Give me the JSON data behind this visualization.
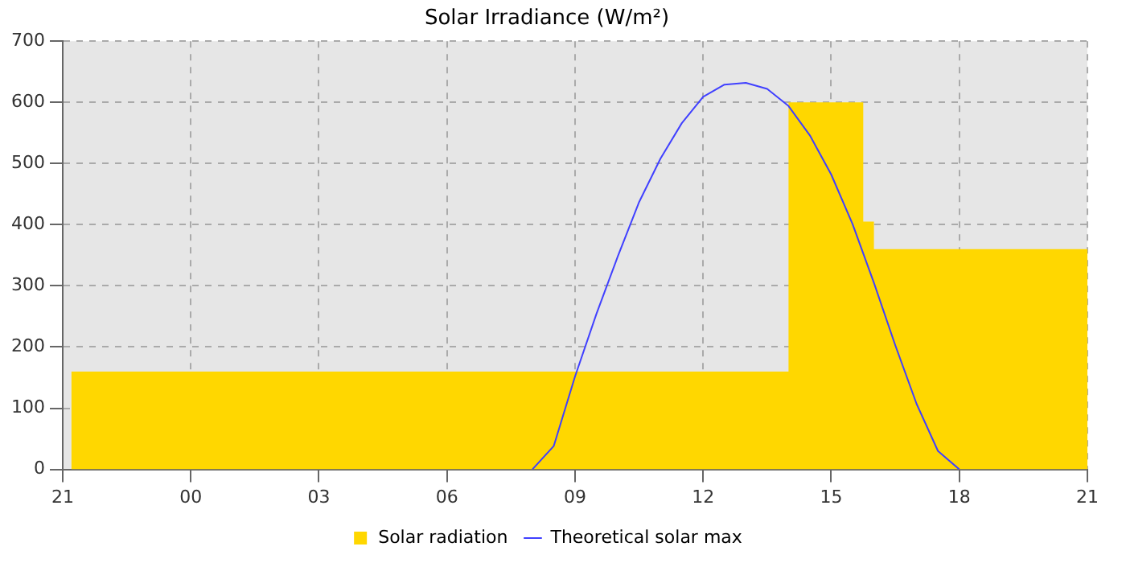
{
  "chart_data": {
    "type": "area",
    "title": "Solar Irradiance (W/m²)",
    "series": [
      {
        "name": "Solar radiation",
        "color": "#ffd700",
        "x": [
          "--01-01T21:12",
          "--01-02T14:00",
          "--01-02T14:00",
          "--01-02T15:45",
          "--01-02T15:45",
          "--01-02T16:00",
          "--01-02T16:00",
          "--01-02T21:00"
        ],
        "values": [
          160,
          160,
          600,
          600,
          405,
          405,
          360,
          360
        ]
      },
      {
        "name": "Theoretical solar max",
        "type": "line",
        "color": "#4040ff",
        "x": [
          "--01-02T08:00",
          "--01-02T08:30",
          "--01-02T09:00",
          "--01-02T09:30",
          "--01-02T10:00",
          "--01-02T10:30",
          "--01-02T11:00",
          "--01-02T11:30",
          "--01-02T12:00",
          "--01-02T12:30",
          "--01-02T13:00",
          "--01-02T13:30",
          "--01-02T14:00",
          "--01-02T14:30",
          "--01-02T15:00",
          "--01-02T15:30",
          "--01-02T16:00",
          "--01-02T16:30",
          "--01-02T17:00",
          "--01-02T17:30",
          "--01-02T18:00"
        ],
        "values": [
          0,
          38,
          152,
          254,
          348,
          437,
          508,
          566,
          609,
          629,
          632,
          622,
          594,
          546,
          482,
          401,
          305,
          203,
          107,
          30,
          0
        ]
      }
    ],
    "xlim": [
      "--01-01T21:00",
      "--01-02T21:00"
    ],
    "xticks": [
      {
        "value": "--01-01T21:00",
        "label": "21"
      },
      {
        "value": "--01-02T00:00",
        "label": "00"
      },
      {
        "value": "--01-02T03:00",
        "label": "03"
      },
      {
        "value": "--01-02T06:00",
        "label": "06"
      },
      {
        "value": "--01-02T09:00",
        "label": "09"
      },
      {
        "value": "--01-02T12:00",
        "label": "12"
      },
      {
        "value": "--01-02T15:00",
        "label": "15"
      },
      {
        "value": "--01-02T18:00",
        "label": "18"
      },
      {
        "value": "--01-02T21:00",
        "label": "21"
      }
    ],
    "ylim": [
      0,
      700
    ],
    "yticks": [
      0,
      100,
      200,
      300,
      400,
      500,
      600,
      700
    ],
    "grid": true,
    "legend": "bottom",
    "marker": "none"
  }
}
